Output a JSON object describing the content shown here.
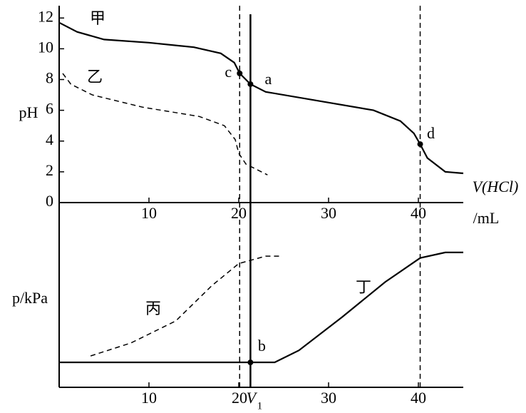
{
  "chart_data": [
    {
      "type": "line",
      "ylabel": "pH",
      "xlabel": "V(HCl)",
      "xunit": "/mL",
      "xlim": [
        0,
        45
      ],
      "ylim": [
        0,
        12.8
      ],
      "xticks": [
        10,
        20,
        30,
        40
      ],
      "yticks": [
        0,
        2,
        4,
        6,
        8,
        10,
        12
      ],
      "series": [
        {
          "name": "甲",
          "color": "#000000",
          "dash": false,
          "x": [
            0,
            2,
            5,
            10,
            15,
            18,
            19.5,
            20.1,
            21.3,
            23,
            30,
            35,
            38,
            39.5,
            40.2,
            41,
            43,
            45
          ],
          "values": [
            11.7,
            11.1,
            10.6,
            10.4,
            10.1,
            9.7,
            9.1,
            8.4,
            7.7,
            7.2,
            6.5,
            6.0,
            5.3,
            4.5,
            3.8,
            2.9,
            2.0,
            1.9
          ]
        },
        {
          "name": "乙",
          "color": "#000000",
          "dash": true,
          "x": [
            0.4,
            1.3,
            3.7,
            9.3,
            15.6,
            18.4,
            19.6,
            20.0,
            20.8,
            23.2
          ],
          "values": [
            8.4,
            7.7,
            7.0,
            6.2,
            5.6,
            5.0,
            4.1,
            3.2,
            2.5,
            1.8
          ]
        }
      ],
      "points": [
        {
          "label": "c",
          "x": 20.1,
          "y": 8.4
        },
        {
          "label": "a",
          "x": 21.3,
          "y": 7.7
        },
        {
          "label": "d",
          "x": 40.2,
          "y": 3.8
        }
      ],
      "vlines": [
        {
          "x": 20.1,
          "dash": true
        },
        {
          "x": 21.3,
          "dash": false
        },
        {
          "x": 40.2,
          "dash": true
        }
      ]
    },
    {
      "type": "line",
      "ylabel": "p/kPa",
      "xlim": [
        0,
        45
      ],
      "ylim": [
        0,
        10
      ],
      "xticks": [
        10,
        20,
        30,
        40
      ],
      "series": [
        {
          "name": "丙",
          "color": "#000000",
          "dash": true,
          "x": [
            3.5,
            8,
            13,
            17,
            20,
            23,
            24.5
          ],
          "values": [
            1.7,
            2.4,
            3.6,
            5.5,
            6.7,
            7.1,
            7.1
          ]
        },
        {
          "name": "丁",
          "color": "#000000",
          "dash": false,
          "x": [
            0,
            21.3,
            24,
            26.7,
            31.5,
            36.3,
            40.2,
            43,
            45
          ],
          "values": [
            1.35,
            1.35,
            1.35,
            2.0,
            3.8,
            5.7,
            7.0,
            7.3,
            7.3
          ]
        }
      ],
      "points": [
        {
          "label": "b",
          "x": 21.3,
          "y": 1.35
        }
      ],
      "marker_label": {
        "text": "V",
        "subscript": "1"
      }
    }
  ]
}
